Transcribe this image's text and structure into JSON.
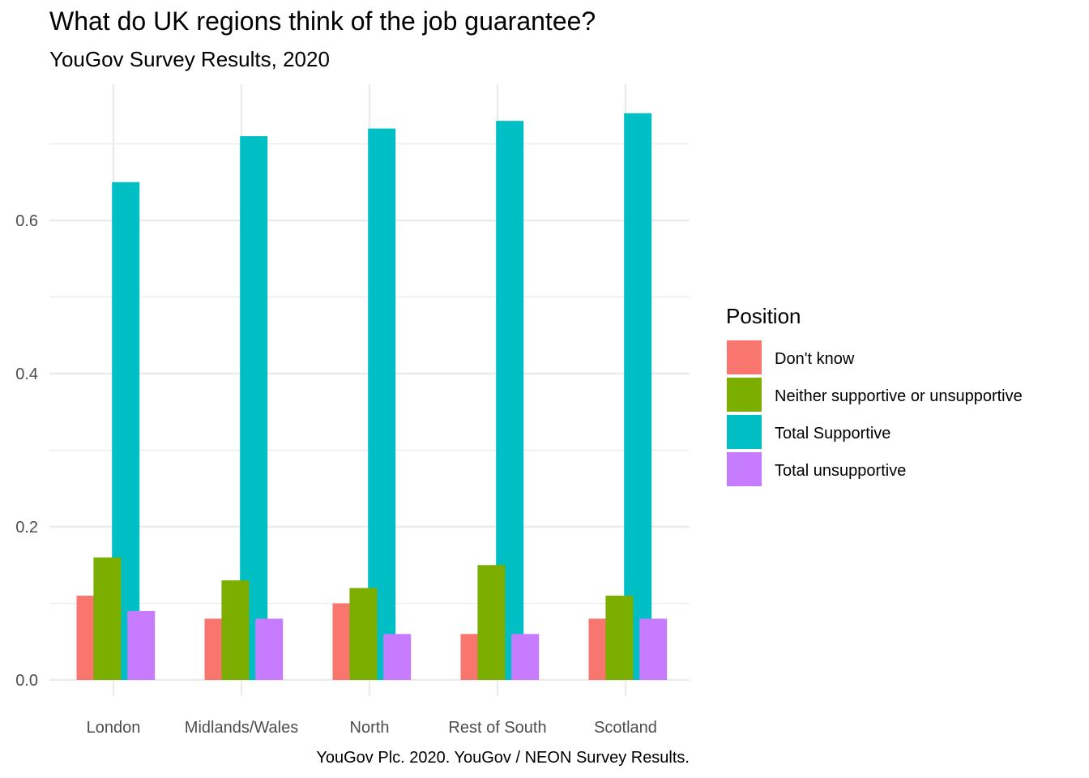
{
  "chart_data": {
    "type": "bar",
    "title": "What do UK regions think of the job guarantee?",
    "subtitle": "YouGov Survey Results, 2020",
    "caption": "YouGov Plc. 2020. YouGov / NEON Survey Results.",
    "xlabel": "",
    "ylabel": "",
    "ylim": [
      0,
      0.76
    ],
    "yticks": [
      0.0,
      0.2,
      0.4,
      0.6
    ],
    "ytick_labels": [
      "0.0",
      "0.2",
      "0.4",
      "0.6"
    ],
    "grid": true,
    "legend_position": "right",
    "legend_title": "Position",
    "categories": [
      "London",
      "Midlands/Wales",
      "North",
      "Rest of South",
      "Scotland"
    ],
    "series": [
      {
        "name": "Don't know",
        "color": "#F8766D",
        "values": [
          0.11,
          0.08,
          0.1,
          0.06,
          0.08
        ]
      },
      {
        "name": "Neither supportive or unsupportive",
        "color": "#7CAE00",
        "values": [
          0.16,
          0.13,
          0.12,
          0.15,
          0.11
        ]
      },
      {
        "name": "Total Supportive",
        "color": "#00BFC4",
        "values": [
          0.65,
          0.71,
          0.72,
          0.73,
          0.74
        ]
      },
      {
        "name": "Total unsupportive",
        "color": "#C77CFF",
        "values": [
          0.09,
          0.08,
          0.06,
          0.06,
          0.08
        ]
      }
    ]
  }
}
